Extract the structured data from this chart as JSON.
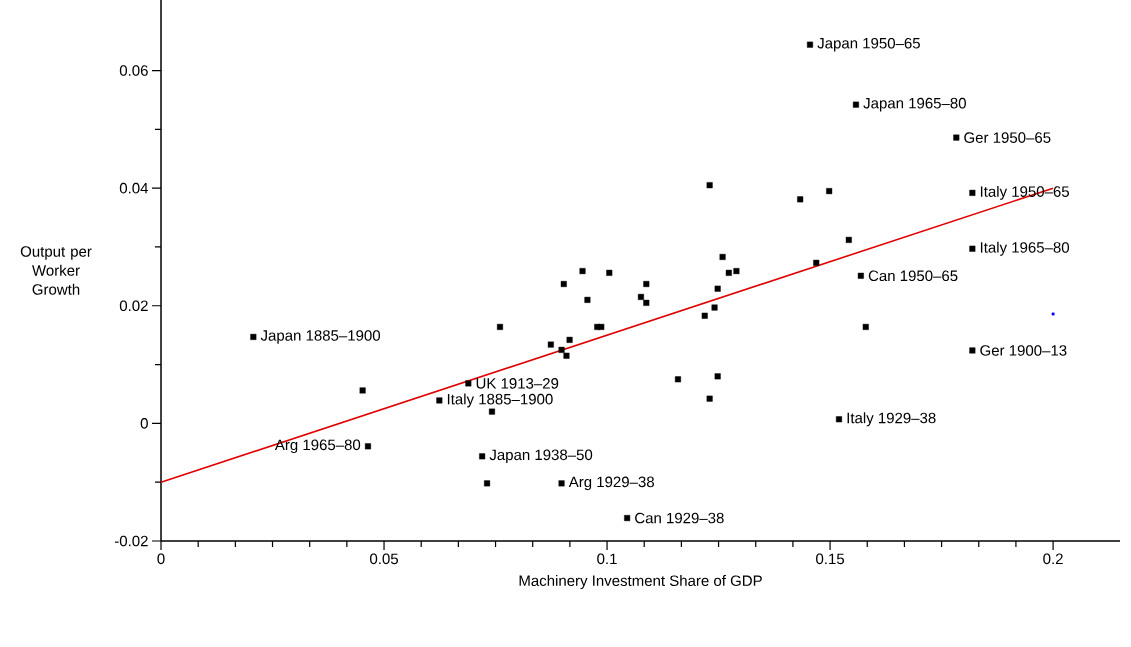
{
  "chart_data": {
    "type": "scatter",
    "xlabel": "Machinery Investment Share of GDP",
    "ylabel": "Output per Worker Growth",
    "xlim": [
      0,
      0.215
    ],
    "ylim": [
      -0.02,
      0.072
    ],
    "xticks": [
      0,
      0.05,
      0.1,
      0.15,
      0.2
    ],
    "yticks": [
      -0.02,
      0,
      0.02,
      0.04,
      0.06
    ],
    "marker": "square",
    "series": [
      {
        "color": "#000000",
        "x": [
          0.1455,
          0.1558,
          0.1783,
          0.1819,
          0.1819,
          0.1569,
          0.1819,
          0.152,
          0.1498,
          0.1542,
          0.158,
          0.1469,
          0.0207,
          0.0452,
          0.0689,
          0.0624,
          0.0742,
          0.0464,
          0.072,
          0.0731,
          0.0898,
          0.1045,
          0.076,
          0.0874,
          0.0898,
          0.0909,
          0.0916,
          0.0903,
          0.0945,
          0.0956,
          0.0978,
          0.0987,
          0.1005,
          0.1088,
          0.1076,
          0.1088,
          0.123,
          0.1433,
          0.1259,
          0.1273,
          0.129,
          0.1248,
          0.1241,
          0.1219,
          0.1159,
          0.1248,
          0.123
        ],
        "values": [
          0.0644,
          0.0542,
          0.0486,
          0.0392,
          0.0297,
          0.0251,
          0.0124,
          0.0007,
          0.0395,
          0.0312,
          0.0164,
          0.0273,
          0.0147,
          0.0056,
          0.0068,
          0.0039,
          0.002,
          -0.0039,
          -0.0056,
          -0.0102,
          -0.0102,
          -0.0161,
          0.0164,
          0.0134,
          0.0125,
          0.0115,
          0.0142,
          0.0237,
          0.0259,
          0.021,
          0.0164,
          0.0164,
          0.0256,
          0.0237,
          0.0215,
          0.0205,
          0.0405,
          0.0381,
          0.0283,
          0.0256,
          0.0259,
          0.0229,
          0.0197,
          0.0183,
          0.0075,
          0.008,
          0.0042
        ]
      },
      {
        "color": "#0000ff",
        "x": [
          0.2
        ],
        "values": [
          0.0186
        ]
      },
      {
        "type": "line",
        "color": "#e00000",
        "marker": "none",
        "line_style": "solid",
        "x": [
          0,
          0.2
        ],
        "values": [
          -0.01,
          0.04
        ]
      }
    ],
    "annotations": [
      {
        "text": "Japan 1950–65",
        "x": 0.1455,
        "y": 0.0644
      },
      {
        "text": "Japan 1965–80",
        "x": 0.1558,
        "y": 0.0542
      },
      {
        "text": "Ger 1950–65",
        "x": 0.1783,
        "y": 0.0486
      },
      {
        "text": "Italy 1950–65",
        "x": 0.1819,
        "y": 0.0392
      },
      {
        "text": "Italy 1965–80",
        "x": 0.1819,
        "y": 0.0297
      },
      {
        "text": "Can 1950–65",
        "x": 0.1569,
        "y": 0.0251
      },
      {
        "text": "Ger 1900–13",
        "x": 0.1819,
        "y": 0.0124
      },
      {
        "text": "Italy 1929–38",
        "x": 0.152,
        "y": 0.0007
      },
      {
        "text": "Japan 1885–1900",
        "x": 0.0207,
        "y": 0.0147
      },
      {
        "text": "UK 1913–29",
        "x": 0.0689,
        "y": 0.0068
      },
      {
        "text": "Italy 1885–1900",
        "x": 0.0624,
        "y": 0.0039
      },
      {
        "text": "Arg 1965–80",
        "x": 0.0464,
        "y": -0.0039
      },
      {
        "text": "Japan 1938–50",
        "x": 0.072,
        "y": -0.0056
      },
      {
        "text": "Arg 1929–38",
        "x": 0.0898,
        "y": -0.0102
      },
      {
        "text": "Can 1929–38",
        "x": 0.1045,
        "y": -0.0161
      }
    ]
  }
}
